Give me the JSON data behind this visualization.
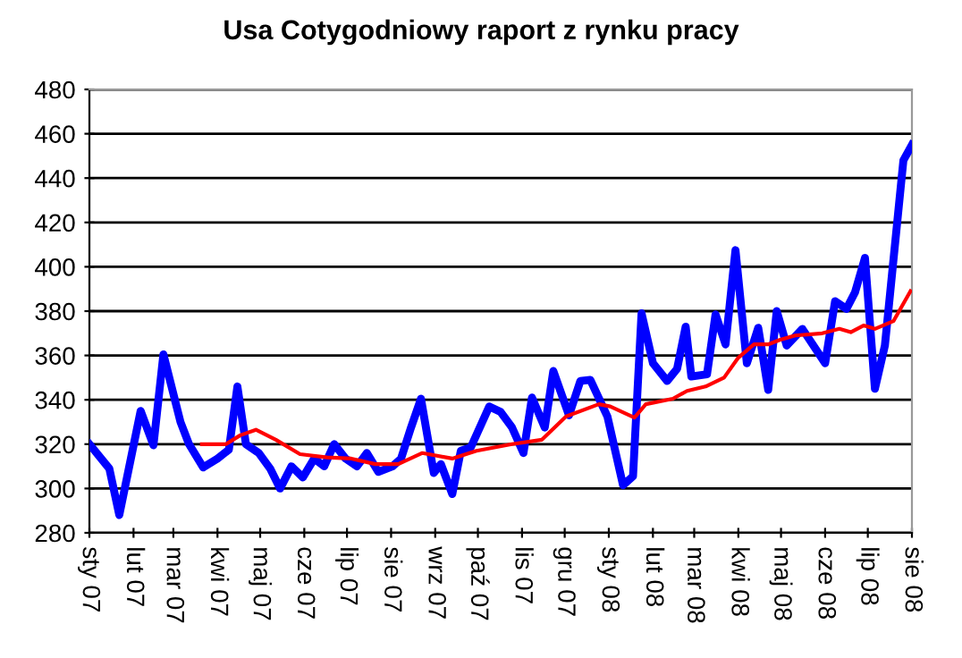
{
  "chart_data": {
    "type": "line",
    "title": "Usa Cotygodniowy raport z rynku pracy",
    "series": [
      {
        "color": "#0000ff",
        "x": [
          "2007-01-01",
          "2007-01-15",
          "2007-01-22",
          "2007-02-06",
          "2007-02-15",
          "2007-02-22",
          "2007-03-06",
          "2007-03-12",
          "2007-03-22",
          "2007-04-01",
          "2007-04-09",
          "2007-04-15",
          "2007-04-21",
          "2007-04-30",
          "2007-05-08",
          "2007-05-15",
          "2007-05-23",
          "2007-05-31",
          "2007-06-08",
          "2007-06-15",
          "2007-06-22",
          "2007-06-30",
          "2007-07-08",
          "2007-07-15",
          "2007-07-23",
          "2007-08-02",
          "2007-08-08",
          "2007-08-15",
          "2007-08-22",
          "2007-08-31",
          "2007-09-05",
          "2007-09-13",
          "2007-09-19",
          "2007-09-26",
          "2007-10-09",
          "2007-10-17",
          "2007-10-25",
          "2007-11-02",
          "2007-11-08",
          "2007-11-17",
          "2007-11-23",
          "2007-12-04",
          "2007-12-12",
          "2007-12-19",
          "2007-12-31",
          "2008-01-11",
          "2008-01-18",
          "2008-01-24",
          "2008-02-01",
          "2008-02-11",
          "2008-02-18",
          "2008-02-24",
          "2008-02-28",
          "2008-03-10",
          "2008-03-16",
          "2008-03-23",
          "2008-03-30",
          "2008-04-07",
          "2008-04-15",
          "2008-04-22",
          "2008-04-28",
          "2008-05-05",
          "2008-05-16",
          "2008-06-01",
          "2008-06-08",
          "2008-06-16",
          "2008-06-22",
          "2008-06-29",
          "2008-07-06",
          "2008-07-13",
          "2008-07-26",
          "2008-08-01"
        ],
        "values": [
          320,
          309,
          288,
          335,
          319.5,
          360.5,
          330,
          320,
          309.5,
          313.5,
          317.5,
          346,
          320,
          316,
          309,
          300,
          310,
          305,
          313.5,
          310,
          320,
          313.5,
          310,
          316,
          307.5,
          310,
          313.5,
          327.5,
          340.5,
          307,
          311,
          297.5,
          317,
          318.5,
          337,
          334.5,
          327.5,
          316,
          341,
          327.5,
          353,
          333,
          348.5,
          349,
          332.5,
          301.5,
          305.5,
          379,
          356.5,
          348.5,
          354,
          373,
          350.5,
          351.5,
          378.5,
          365,
          407.5,
          356.5,
          372.5,
          344.5,
          380,
          364.5,
          372,
          356.5,
          384.5,
          381,
          388.5,
          404,
          345,
          364.5,
          448,
          455
        ]
      },
      {
        "color": "#ff0000",
        "x": [
          "2007-03-21",
          "2007-04-07",
          "2007-04-17",
          "2007-04-28",
          "2007-05-12",
          "2007-05-29",
          "2007-06-17",
          "2007-07-04",
          "2007-07-21",
          "2007-08-06",
          "2007-08-23",
          "2007-09-13",
          "2007-09-30",
          "2007-10-25",
          "2007-11-15",
          "2007-12-02",
          "2007-12-25",
          "2008-01-02",
          "2008-01-19",
          "2008-01-27",
          "2008-02-15",
          "2008-02-25",
          "2008-03-09",
          "2008-03-22",
          "2008-04-01",
          "2008-04-12",
          "2008-04-22",
          "2008-04-30",
          "2008-05-11",
          "2008-05-30",
          "2008-06-11",
          "2008-06-19",
          "2008-06-28",
          "2008-07-06",
          "2008-07-19",
          "2008-07-31"
        ],
        "values": [
          320,
          320,
          324,
          326.5,
          322,
          315.5,
          314,
          313.5,
          311,
          311,
          316,
          313.5,
          317,
          320,
          322,
          332.5,
          338,
          337,
          332,
          338,
          340.5,
          344,
          346,
          350,
          359,
          365,
          365,
          367,
          369,
          370,
          372,
          370.5,
          373.5,
          372,
          375.5,
          389
        ]
      }
    ],
    "xlim": [
      "2007-01-01",
      "2008-08-01"
    ],
    "xticks": [
      {
        "value": "2007-01-01",
        "label": "sty 07"
      },
      {
        "value": "2007-02-01",
        "label": "lut 07"
      },
      {
        "value": "2007-03-01",
        "label": "mar 07"
      },
      {
        "value": "2007-04-01",
        "label": "kwi 07"
      },
      {
        "value": "2007-05-01",
        "label": "maj 07"
      },
      {
        "value": "2007-06-01",
        "label": "cze 07"
      },
      {
        "value": "2007-07-01",
        "label": "lip 07"
      },
      {
        "value": "2007-08-01",
        "label": "sie 07"
      },
      {
        "value": "2007-09-01",
        "label": "wrz 07"
      },
      {
        "value": "2007-10-01",
        "label": "paź 07"
      },
      {
        "value": "2007-11-01",
        "label": "lis 07"
      },
      {
        "value": "2007-12-01",
        "label": "gru 07"
      },
      {
        "value": "2008-01-01",
        "label": "sty 08"
      },
      {
        "value": "2008-02-01",
        "label": "lut 08"
      },
      {
        "value": "2008-03-01",
        "label": "mar 08"
      },
      {
        "value": "2008-04-01",
        "label": "kwi 08"
      },
      {
        "value": "2008-05-01",
        "label": "maj 08"
      },
      {
        "value": "2008-06-01",
        "label": "cze 08"
      },
      {
        "value": "2008-07-01",
        "label": "lip 08"
      },
      {
        "value": "2008-08-01",
        "label": "sie 08"
      }
    ],
    "ylim": [
      280,
      480
    ],
    "yticks": [
      280,
      300,
      320,
      340,
      360,
      380,
      400,
      420,
      440,
      460,
      480
    ],
    "grid": "y",
    "marker": "none"
  }
}
